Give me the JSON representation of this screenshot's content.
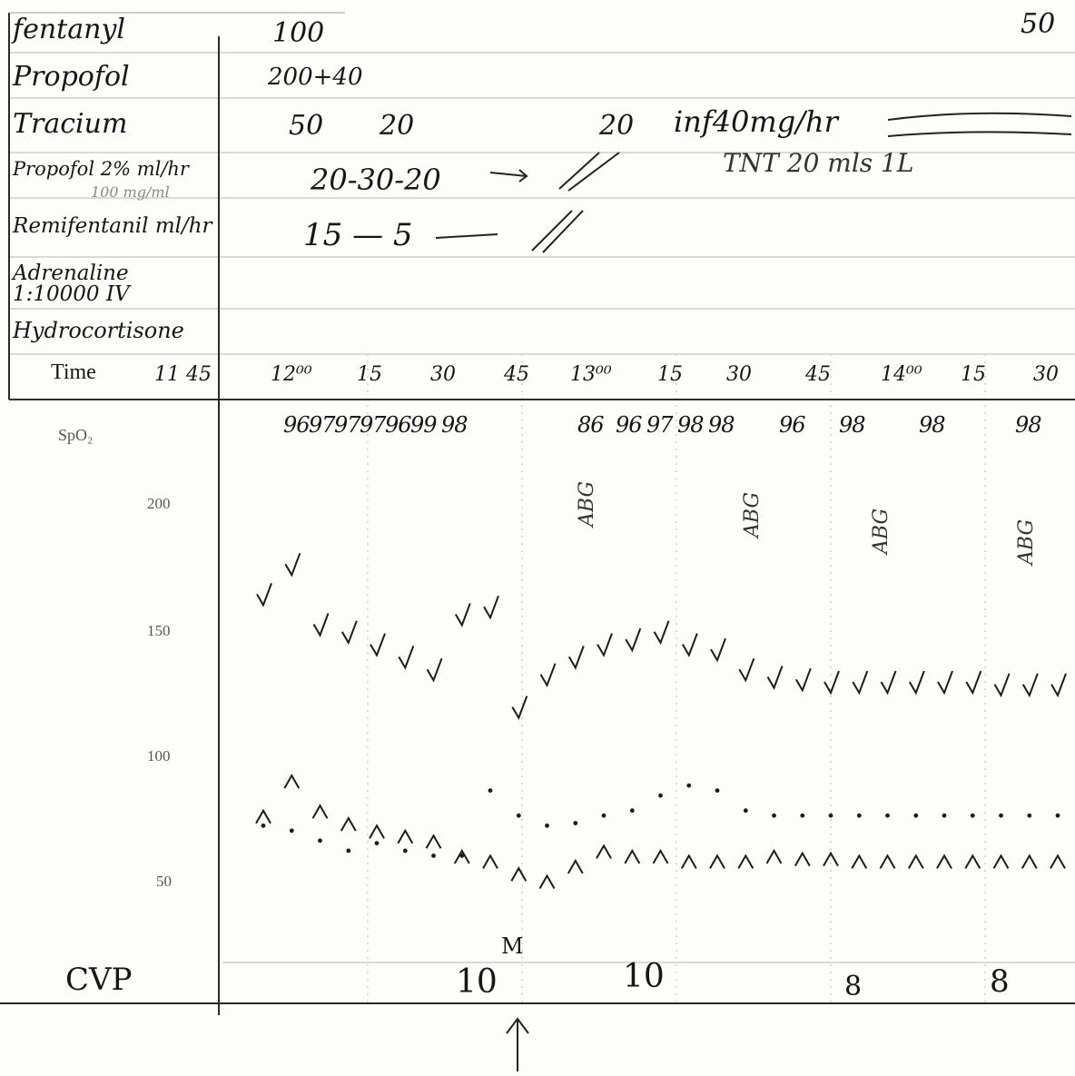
{
  "drugs": {
    "fentanyl": {
      "label": "fentanyl",
      "doses": [
        "100",
        "50"
      ]
    },
    "propofol": {
      "label": "Propofol",
      "doses": [
        "200+40"
      ]
    },
    "tracium": {
      "label": "Tracium",
      "doses": [
        "50",
        "20",
        "20",
        "inf40mg/hr"
      ]
    },
    "propofol_2": {
      "label": "Propofol 2% ml/hr",
      "sub": "100 mg/ml",
      "doses": [
        "20-30-20"
      ],
      "note": "TNT 20 mls 1L"
    },
    "remifentanil": {
      "label": "Remifentanil ml/hr",
      "doses": [
        "15 — 5"
      ]
    },
    "adrenaline": {
      "label": "Adrenaline 1:10000 IV"
    },
    "hydrocortisone": {
      "label": "Hydrocortisone"
    }
  },
  "time_row": {
    "label": "Time",
    "ticks": [
      "11 45",
      "12⁰⁰",
      "15",
      "30",
      "45",
      "13⁰⁰",
      "15",
      "30",
      "45",
      "14⁰⁰",
      "15",
      "30"
    ]
  },
  "spo2": {
    "label": "SpO₂",
    "readings": [
      "96",
      "97",
      "97",
      "97",
      "96",
      "99",
      "98",
      "86",
      "96",
      "97",
      "98",
      "98",
      "96",
      "98",
      "98",
      "98"
    ]
  },
  "abg_marks": [
    "ABG",
    "ABG",
    "ABG",
    "ABG"
  ],
  "y_axis": [
    "200",
    "150",
    "100",
    "50"
  ],
  "cvp": {
    "label": "CVP",
    "values": [
      "10",
      "10",
      "8",
      "8"
    ]
  },
  "marker": "M",
  "chart_data": {
    "type": "line",
    "ylim": [
      0,
      230
    ],
    "yticks": [
      50,
      100,
      150,
      200
    ],
    "series": [
      {
        "marker": "v",
        "values": [
          160,
          172,
          148,
          145,
          140,
          135,
          130,
          152,
          155,
          115,
          128,
          135,
          140,
          142,
          145,
          140,
          138,
          130,
          127,
          126,
          125,
          125,
          125,
          125,
          125,
          125,
          124,
          124,
          124
        ]
      },
      {
        "marker": "^",
        "values": [
          78,
          92,
          80,
          75,
          72,
          70,
          68,
          62,
          60,
          55,
          52,
          58,
          64,
          62,
          62,
          60,
          60,
          60,
          62,
          61,
          61,
          60,
          60,
          60,
          60,
          60,
          60,
          60,
          60
        ]
      },
      {
        "marker": "dot",
        "values": [
          72,
          70,
          66,
          62,
          65,
          62,
          60,
          60,
          86,
          76,
          72,
          73,
          76,
          78,
          84,
          88,
          86,
          78,
          76,
          76,
          76,
          76,
          76,
          76,
          76,
          76,
          76,
          76,
          76
        ]
      }
    ]
  }
}
